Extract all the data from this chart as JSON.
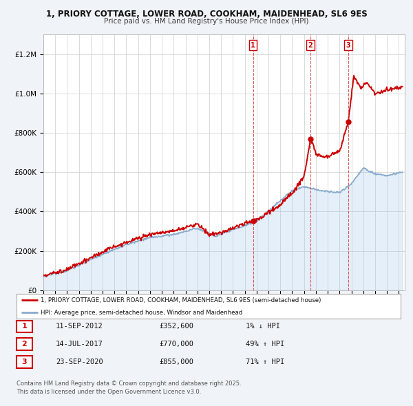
{
  "title_line1": "1, PRIORY COTTAGE, LOWER ROAD, COOKHAM, MAIDENHEAD, SL6 9ES",
  "title_line2": "Price paid vs. HM Land Registry's House Price Index (HPI)",
  "legend_label_red": "1, PRIORY COTTAGE, LOWER ROAD, COOKHAM, MAIDENHEAD, SL6 9ES (semi-detached house)",
  "legend_label_blue": "HPI: Average price, semi-detached house, Windsor and Maidenhead",
  "transactions": [
    {
      "num": 1,
      "date": "11-SEP-2012",
      "price": 352600,
      "year": 2012.7,
      "pct": "1%",
      "dir": "↓"
    },
    {
      "num": 2,
      "date": "14-JUL-2017",
      "price": 770000,
      "year": 2017.54,
      "pct": "49%",
      "dir": "↑"
    },
    {
      "num": 3,
      "date": "23-SEP-2020",
      "price": 855000,
      "year": 2020.73,
      "pct": "71%",
      "dir": "↑"
    }
  ],
  "footer": "Contains HM Land Registry data © Crown copyright and database right 2025.\nThis data is licensed under the Open Government Licence v3.0.",
  "ylim": [
    0,
    1300000
  ],
  "yticks": [
    0,
    200000,
    400000,
    600000,
    800000,
    1000000,
    1200000
  ],
  "xlim_start": 1995.0,
  "xlim_end": 2025.5,
  "bg_color": "#f0f4f8",
  "plot_bg": "#ffffff",
  "red_color": "#cc0000",
  "blue_color": "#aaccee",
  "vline_color": "#dd4444",
  "grid_color": "#cccccc"
}
